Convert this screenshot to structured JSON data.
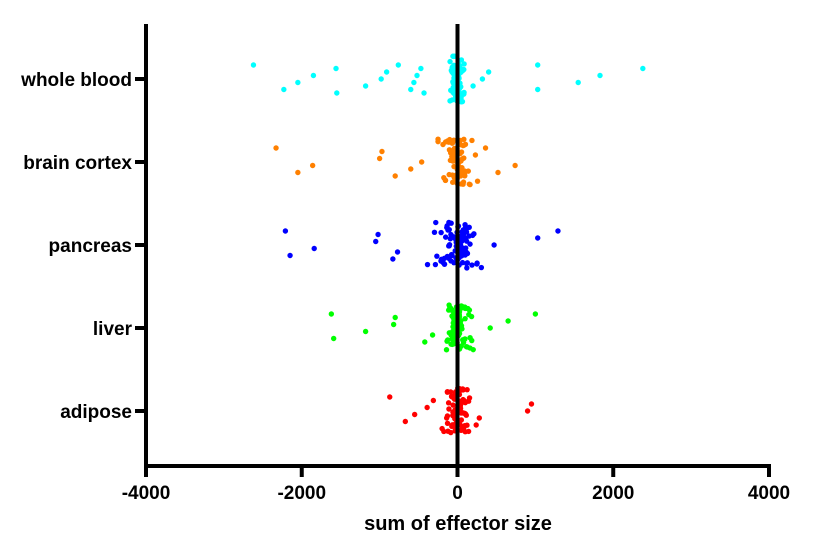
{
  "chart_data": {
    "type": "scatter",
    "subtype": "strip",
    "title": "",
    "xlabel": "sum of effector size",
    "ylabel": "",
    "xlim": [
      -4000,
      4000
    ],
    "xticks": [
      -4000,
      -2000,
      0,
      2000,
      4000
    ],
    "xtick_labels": [
      "-4000",
      "-2000",
      "0",
      "2000",
      "4000"
    ],
    "reference_line_x": 0,
    "grid": false,
    "legend": "none",
    "categories": [
      "whole blood",
      "brain cortex",
      "pancreas",
      "liver",
      "adipose"
    ],
    "series": [
      {
        "name": "whole blood",
        "color": "#00ffff",
        "outliers": [
          -2620,
          -2230,
          -2050,
          -1850,
          -1560,
          -1550,
          -1180,
          -980,
          -910,
          -760,
          -600,
          -560,
          -520,
          -470,
          -430,
          200,
          320,
          400,
          1030,
          1030,
          1550,
          1830,
          2380
        ],
        "core": {
          "n": 90,
          "spread": 180
        }
      },
      {
        "name": "brain cortex",
        "color": "#ff8000",
        "outliers": [
          -2330,
          -2050,
          -1860,
          -1000,
          -970,
          -800,
          -600,
          -460,
          230,
          360,
          520,
          740
        ],
        "core": {
          "n": 80,
          "spread": 320
        }
      },
      {
        "name": "pancreas",
        "color": "#0000ff",
        "outliers": [
          -2210,
          -2150,
          -1840,
          -1050,
          -1020,
          -830,
          -770,
          470,
          1030,
          1290
        ],
        "core": {
          "n": 90,
          "spread": 450
        }
      },
      {
        "name": "liver",
        "color": "#00ff00",
        "outliers": [
          -1620,
          -1590,
          -1180,
          -820,
          -800,
          -420,
          -320,
          420,
          650,
          1000
        ],
        "core": {
          "n": 80,
          "spread": 320
        }
      },
      {
        "name": "adipose",
        "color": "#ff0000",
        "outliers": [
          -870,
          -670,
          -550,
          -390,
          -310,
          240,
          280,
          900,
          950
        ],
        "core": {
          "n": 80,
          "spread": 320
        }
      }
    ]
  }
}
